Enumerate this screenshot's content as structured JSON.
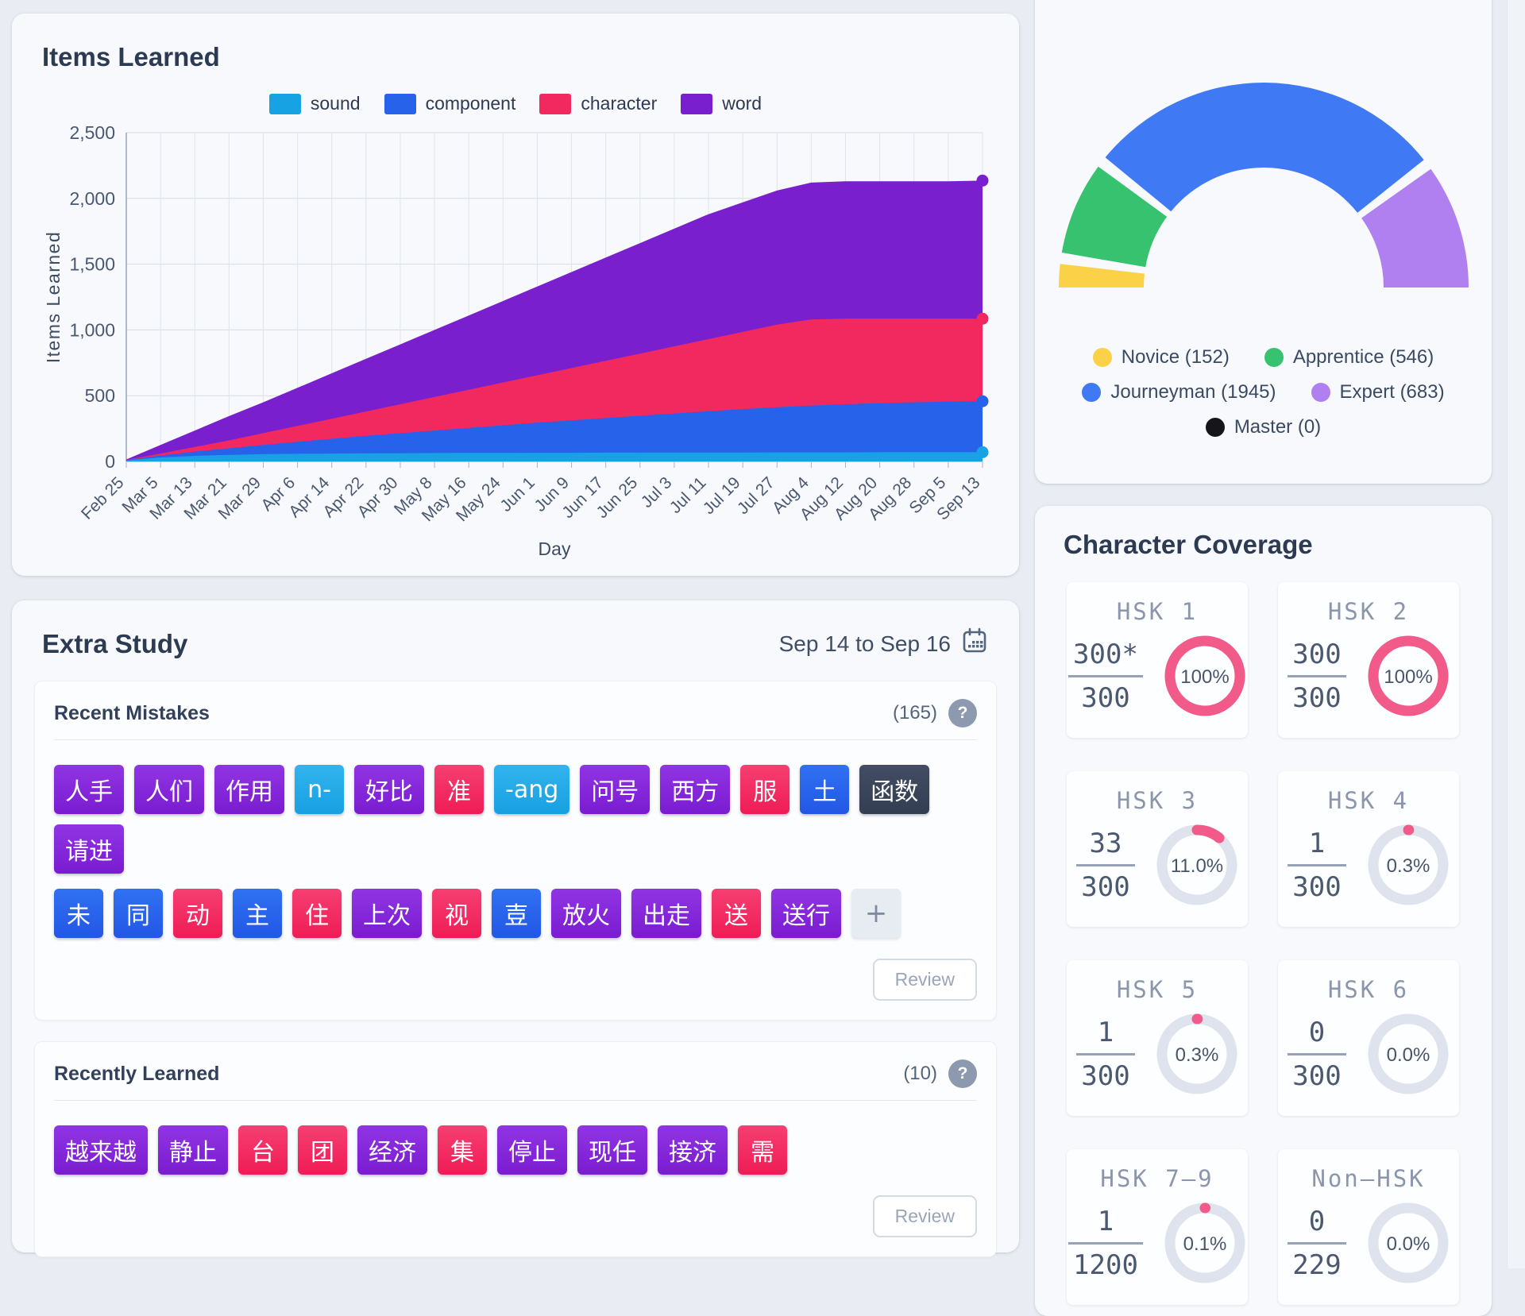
{
  "items_learned": {
    "title": "Items Learned",
    "chart_data": {
      "type": "area",
      "stacked": true,
      "title": "Items Learned",
      "xlabel": "Day",
      "ylabel": "Items Learned",
      "ylim": [
        0,
        2500
      ],
      "ytick_labels": [
        "0",
        "500",
        "1,000",
        "1,500",
        "2,000",
        "2,500"
      ],
      "grid": true,
      "legend_position": "top",
      "categories": [
        "Feb 25",
        "Mar 5",
        "Mar 13",
        "Mar 21",
        "Mar 29",
        "Apr 6",
        "Apr 14",
        "Apr 22",
        "Apr 30",
        "May 8",
        "May 16",
        "May 24",
        "Jun 1",
        "Jun 9",
        "Jun 17",
        "Jun 25",
        "Jul 3",
        "Jul 11",
        "Jul 19",
        "Jul 27",
        "Aug 4",
        "Aug 12",
        "Aug 20",
        "Aug 28",
        "Sep 5",
        "Sep 13"
      ],
      "series": [
        {
          "name": "sound",
          "color": "#17a2e3",
          "values": [
            8,
            30,
            42,
            50,
            55,
            58,
            60,
            62,
            63,
            64,
            65,
            65,
            66,
            66,
            67,
            67,
            68,
            68,
            68,
            69,
            69,
            69,
            70,
            70,
            70,
            70
          ]
        },
        {
          "name": "component",
          "color": "#2763ea",
          "values": [
            2,
            15,
            33,
            50,
            70,
            92,
            112,
            133,
            152,
            171,
            190,
            210,
            229,
            246,
            263,
            281,
            297,
            314,
            330,
            343,
            356,
            366,
            373,
            380,
            385,
            388
          ]
        },
        {
          "name": "character",
          "color": "#f1295f",
          "values": [
            2,
            15,
            35,
            60,
            90,
            120,
            153,
            185,
            220,
            255,
            290,
            325,
            360,
            398,
            435,
            472,
            510,
            548,
            587,
            628,
            655,
            650,
            642,
            635,
            630,
            627
          ]
        },
        {
          "name": "word",
          "color": "#7a1fce",
          "values": [
            3,
            65,
            125,
            185,
            235,
            290,
            345,
            400,
            455,
            510,
            565,
            620,
            675,
            730,
            785,
            840,
            895,
            950,
            985,
            1020,
            1040,
            1045,
            1045,
            1045,
            1045,
            1050
          ]
        }
      ]
    }
  },
  "proficiency_gauge": {
    "chart_data": {
      "type": "pie",
      "shape": "half-donut",
      "segments": [
        {
          "label": "Novice",
          "count": 152,
          "color": "#fbd148"
        },
        {
          "label": "Apprentice",
          "count": 546,
          "color": "#36c26e"
        },
        {
          "label": "Journeyman",
          "count": 1945,
          "color": "#3f79f4"
        },
        {
          "label": "Expert",
          "count": 683,
          "color": "#b180f0"
        },
        {
          "label": "Master",
          "count": 0,
          "color": "#15151a"
        }
      ]
    }
  },
  "extra_study": {
    "title": "Extra Study",
    "date_range": "Sep 14 to Sep 16",
    "help_glyph": "?",
    "recent_mistakes": {
      "title": "Recent Mistakes",
      "count_label": "(165)",
      "review_label": "Review",
      "rows": [
        [
          {
            "text": "人手",
            "color": "purple"
          },
          {
            "text": "人们",
            "color": "purple"
          },
          {
            "text": "作用",
            "color": "purple"
          },
          {
            "text": "n-",
            "color": "cyan"
          },
          {
            "text": "好比",
            "color": "purple"
          },
          {
            "text": "准",
            "color": "pink"
          },
          {
            "text": "-ang",
            "color": "cyan"
          },
          {
            "text": "问号",
            "color": "purple"
          },
          {
            "text": "西方",
            "color": "purple"
          },
          {
            "text": "服",
            "color": "pink"
          },
          {
            "text": "土",
            "color": "blue"
          },
          {
            "text": "函数",
            "color": "dark"
          },
          {
            "text": "请进",
            "color": "purple"
          }
        ],
        [
          {
            "text": "未",
            "color": "blue"
          },
          {
            "text": "同",
            "color": "blue"
          },
          {
            "text": "动",
            "color": "pink"
          },
          {
            "text": "主",
            "color": "blue"
          },
          {
            "text": "住",
            "color": "pink"
          },
          {
            "text": "上次",
            "color": "purple"
          },
          {
            "text": "视",
            "color": "pink"
          },
          {
            "text": "壴",
            "color": "blue"
          },
          {
            "text": "放火",
            "color": "purple"
          },
          {
            "text": "出走",
            "color": "purple"
          },
          {
            "text": "送",
            "color": "pink"
          },
          {
            "text": "送行",
            "color": "purple"
          },
          {
            "text": "+",
            "color": "plus"
          }
        ]
      ]
    },
    "recently_learned": {
      "title": "Recently Learned",
      "count_label": "(10)",
      "review_label": "Review",
      "rows": [
        [
          {
            "text": "越来越",
            "color": "purple"
          },
          {
            "text": "静止",
            "color": "purple"
          },
          {
            "text": "台",
            "color": "pink"
          },
          {
            "text": "团",
            "color": "pink"
          },
          {
            "text": "经济",
            "color": "purple"
          },
          {
            "text": "集",
            "color": "pink"
          },
          {
            "text": "停止",
            "color": "purple"
          },
          {
            "text": "现任",
            "color": "purple"
          },
          {
            "text": "接济",
            "color": "purple"
          },
          {
            "text": "需",
            "color": "pink"
          }
        ]
      ]
    }
  },
  "character_coverage": {
    "title": "Character Coverage",
    "accent_color": "#f25a8a",
    "track_color": "#dfe3ee",
    "cards": [
      {
        "label": "HSK 1",
        "numerator": "300*",
        "denominator": "300",
        "percent": 100,
        "percent_label": "100%"
      },
      {
        "label": "HSK 2",
        "numerator": "300",
        "denominator": "300",
        "percent": 100,
        "percent_label": "100%"
      },
      {
        "label": "HSK 3",
        "numerator": "33",
        "denominator": "300",
        "percent": 11.0,
        "percent_label": "11.0%"
      },
      {
        "label": "HSK 4",
        "numerator": "1",
        "denominator": "300",
        "percent": 0.3,
        "percent_label": "0.3%"
      },
      {
        "label": "HSK 5",
        "numerator": "1",
        "denominator": "300",
        "percent": 0.3,
        "percent_label": "0.3%"
      },
      {
        "label": "HSK 6",
        "numerator": "0",
        "denominator": "300",
        "percent": 0,
        "percent_label": "0.0%"
      },
      {
        "label": "HSK 7–9",
        "numerator": "1",
        "denominator": "1200",
        "percent": 0.1,
        "percent_label": "0.1%"
      },
      {
        "label": "Non–HSK",
        "numerator": "0",
        "denominator": "229",
        "percent": 0,
        "percent_label": "0.0%"
      }
    ]
  }
}
